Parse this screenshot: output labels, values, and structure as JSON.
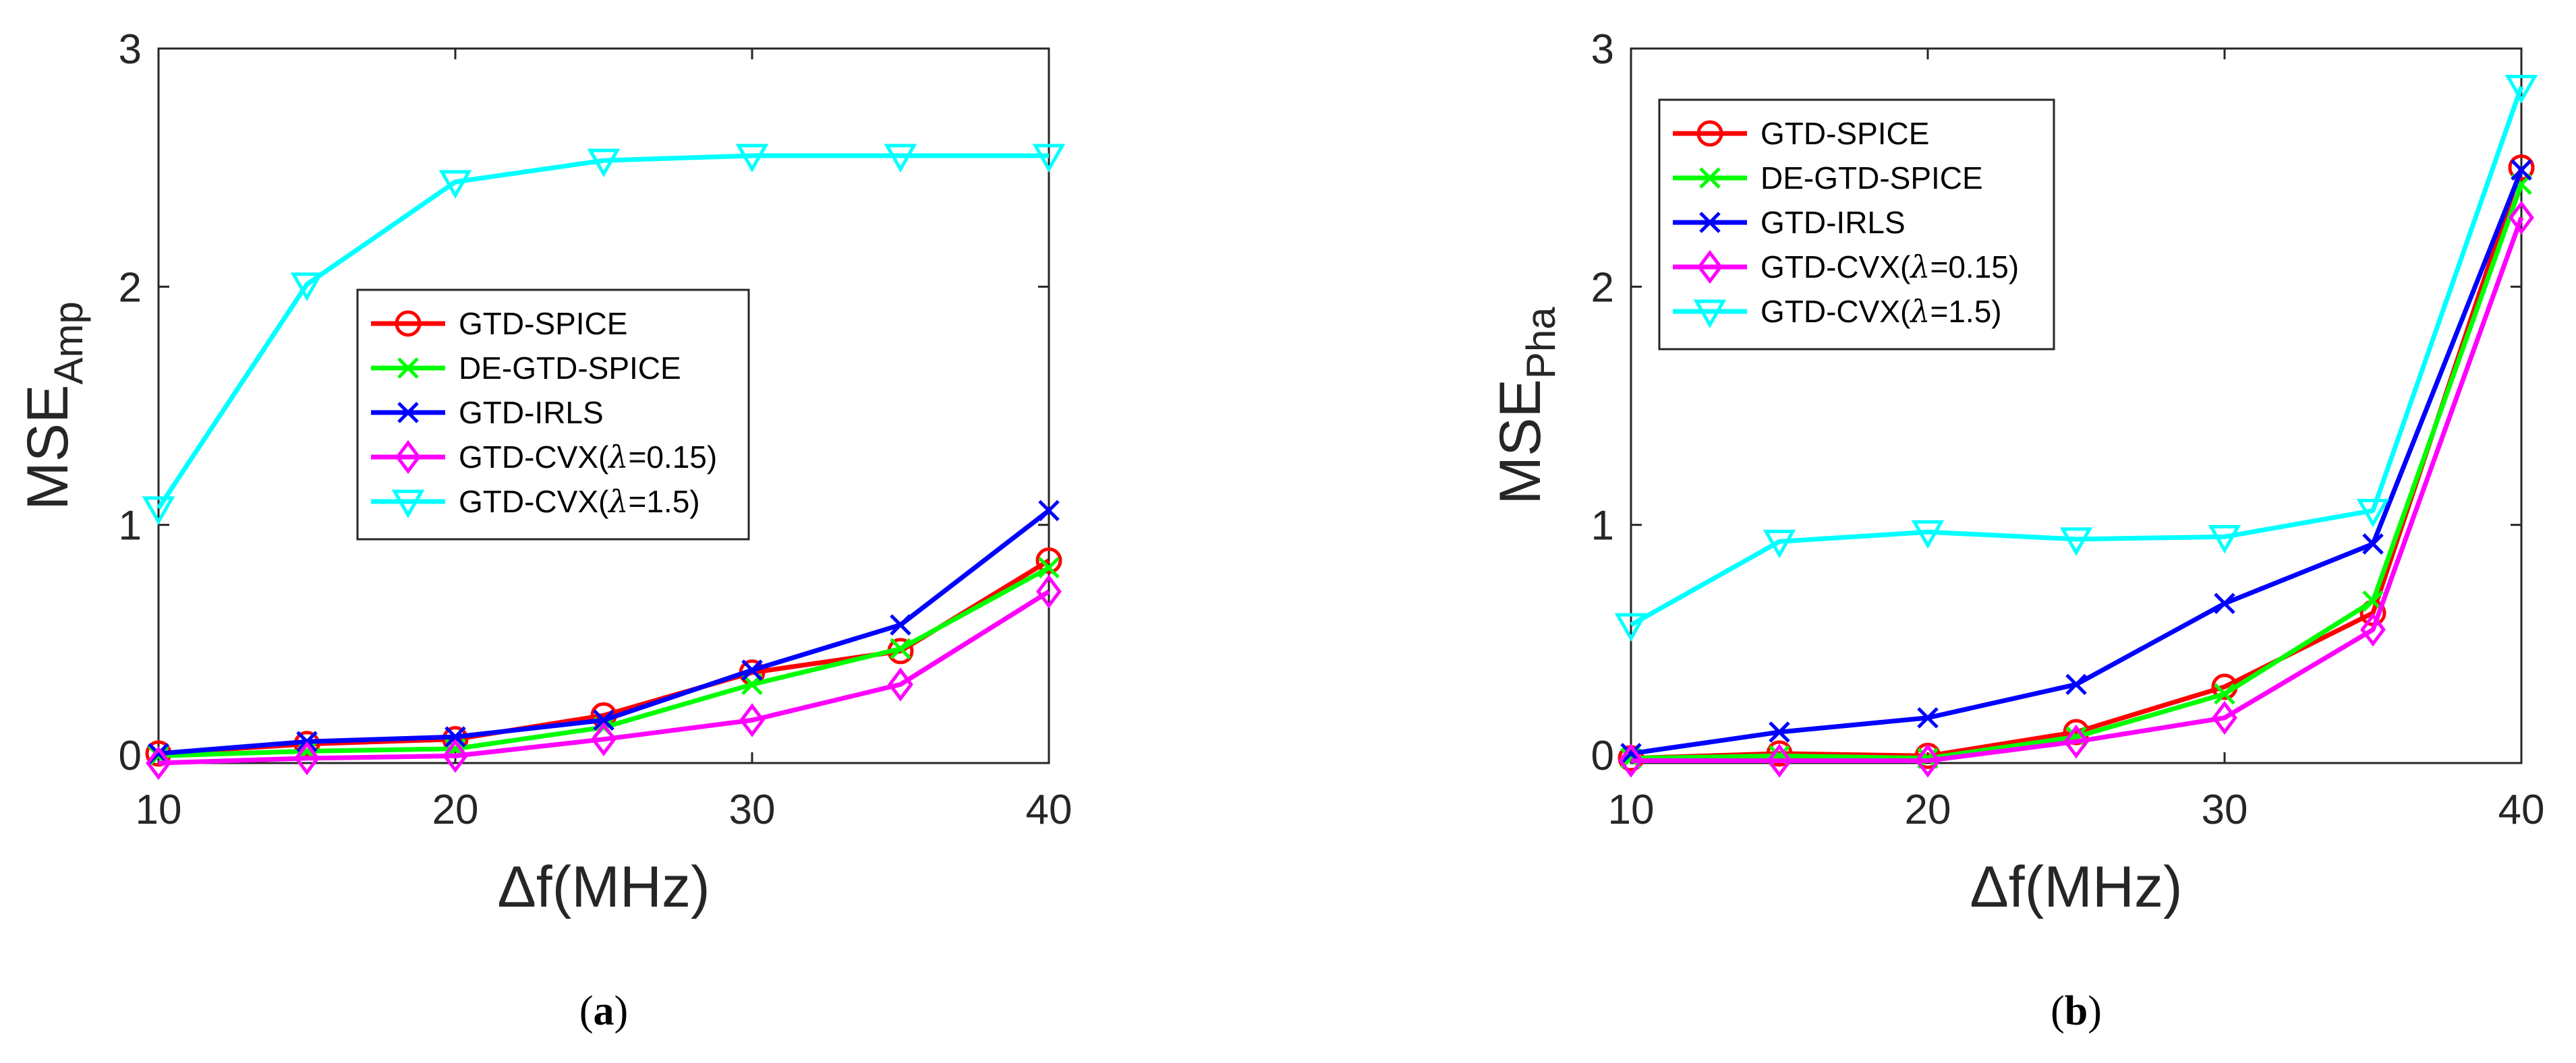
{
  "chart_data": [
    {
      "type": "line",
      "panel": "a",
      "caption_label": "a",
      "xlabel": "Δf(MHz)",
      "ylabel_main": "MSE",
      "ylabel_sub": "Amp",
      "xlim": [
        10,
        40
      ],
      "ylim": [
        0,
        3
      ],
      "xticks": [
        "10",
        "20",
        "30",
        "40"
      ],
      "yticks": [
        "0",
        "1",
        "2",
        "3"
      ],
      "legend_position": "middle",
      "x": [
        10,
        15,
        20,
        25,
        30,
        35,
        40
      ],
      "series": [
        {
          "name": "GTD-SPICE",
          "color": "#ff0000",
          "marker": "circle",
          "values": [
            0.04,
            0.08,
            0.1,
            0.2,
            0.38,
            0.47,
            0.85
          ]
        },
        {
          "name": "DE-GTD-SPICE",
          "color": "#00ff00",
          "marker": "x",
          "values": [
            0.03,
            0.05,
            0.06,
            0.15,
            0.33,
            0.48,
            0.82
          ]
        },
        {
          "name": "GTD-IRLS",
          "color": "#0000ff",
          "marker": "x",
          "values": [
            0.04,
            0.09,
            0.11,
            0.18,
            0.39,
            0.58,
            1.06
          ]
        },
        {
          "name": "GTD-CVX(λ=0.15)",
          "name_prefix": "GTD-CVX(",
          "name_symbol": "λ",
          "name_suffix": "=0.15)",
          "color": "#ff00ff",
          "marker": "diamond",
          "values": [
            0.0,
            0.02,
            0.03,
            0.1,
            0.18,
            0.33,
            0.72
          ]
        },
        {
          "name": "GTD-CVX(λ=1.5)",
          "name_prefix": "GTD-CVX(",
          "name_symbol": "λ",
          "name_suffix": "=1.5)",
          "color": "#00ffff",
          "marker": "triangle-down",
          "values": [
            1.07,
            2.01,
            2.44,
            2.53,
            2.55,
            2.55,
            2.55
          ]
        }
      ]
    },
    {
      "type": "line",
      "panel": "b",
      "caption_label": "b",
      "xlabel": "Δf(MHz)",
      "ylabel_main": "MSE",
      "ylabel_sub": "Pha",
      "xlim": [
        10,
        40
      ],
      "ylim": [
        0,
        3
      ],
      "xticks": [
        "10",
        "20",
        "30",
        "40"
      ],
      "yticks": [
        "0",
        "1",
        "2",
        "3"
      ],
      "legend_position": "top-left",
      "x": [
        10,
        15,
        20,
        25,
        30,
        35,
        40
      ],
      "series": [
        {
          "name": "GTD-SPICE",
          "color": "#ff0000",
          "marker": "circle",
          "values": [
            0.02,
            0.04,
            0.03,
            0.13,
            0.32,
            0.63,
            2.5
          ]
        },
        {
          "name": "DE-GTD-SPICE",
          "color": "#00ff00",
          "marker": "x",
          "values": [
            0.02,
            0.03,
            0.02,
            0.11,
            0.29,
            0.68,
            2.43
          ]
        },
        {
          "name": "GTD-IRLS",
          "color": "#0000ff",
          "marker": "x",
          "values": [
            0.04,
            0.13,
            0.19,
            0.33,
            0.67,
            0.92,
            2.49
          ]
        },
        {
          "name": "GTD-CVX(λ=0.15)",
          "name_prefix": "GTD-CVX(",
          "name_symbol": "λ",
          "name_suffix": "=0.15)",
          "color": "#ff00ff",
          "marker": "diamond",
          "values": [
            0.01,
            0.01,
            0.01,
            0.09,
            0.19,
            0.56,
            2.29
          ]
        },
        {
          "name": "GTD-CVX(λ=1.5)",
          "name_prefix": "GTD-CVX(",
          "name_symbol": "λ",
          "name_suffix": "=1.5)",
          "color": "#00ffff",
          "marker": "triangle-down",
          "values": [
            0.58,
            0.93,
            0.97,
            0.94,
            0.95,
            1.06,
            2.84
          ]
        }
      ]
    }
  ]
}
